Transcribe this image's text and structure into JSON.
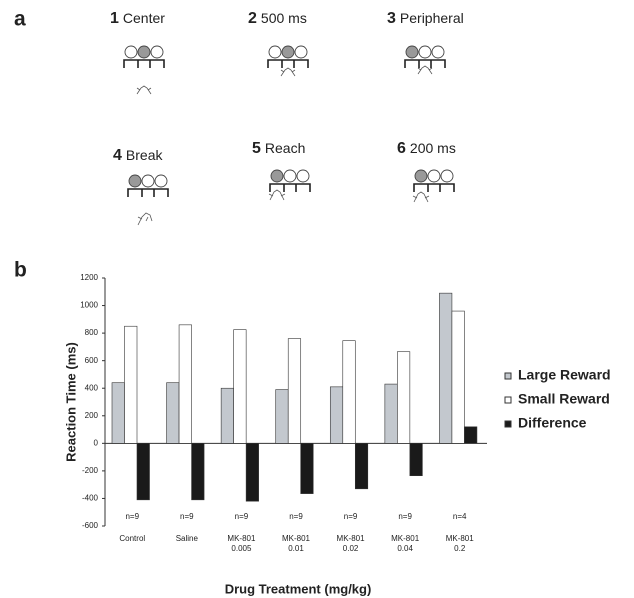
{
  "panel_a": {
    "label": "a",
    "steps": [
      {
        "number": "1",
        "label": "Center"
      },
      {
        "number": "2",
        "label": "500 ms"
      },
      {
        "number": "3",
        "label": "Peripheral"
      },
      {
        "number": "4",
        "label": "Break"
      },
      {
        "number": "5",
        "label": "Reach"
      },
      {
        "number": "6",
        "label": "200 ms"
      }
    ]
  },
  "panel_b": {
    "label": "b"
  },
  "chart_data": {
    "type": "bar",
    "y_label": "Reaction Time (ms)",
    "x_label": "Drug Treatment (mg/kg)",
    "categories": [
      "Control",
      "Saline",
      "MK-801\n0.005",
      "MK-801\n0.01",
      "MK-801\n0.02",
      "MK-801\n0.04",
      "MK-801\n0.2"
    ],
    "annotations": [
      "n=9",
      "n=9",
      "n=9",
      "n=9",
      "n=9",
      "n=9",
      "n=4"
    ],
    "series": [
      {
        "name": "Large Reward",
        "color": "#c3c8ce",
        "values": [
          440,
          440,
          400,
          390,
          410,
          430,
          1090
        ]
      },
      {
        "name": "Small Reward",
        "color": "#ffffff",
        "values": [
          850,
          860,
          825,
          760,
          745,
          665,
          960
        ]
      },
      {
        "name": "Difference",
        "color": "#1a1a1a",
        "values": [
          -410,
          -410,
          -420,
          -365,
          -330,
          -235,
          120
        ]
      }
    ],
    "ylim": [
      -600,
      1200
    ],
    "yticks": [
      -600,
      -400,
      -200,
      0,
      200,
      400,
      600,
      800,
      1000,
      1200
    ],
    "grid": false,
    "legend": "right"
  }
}
